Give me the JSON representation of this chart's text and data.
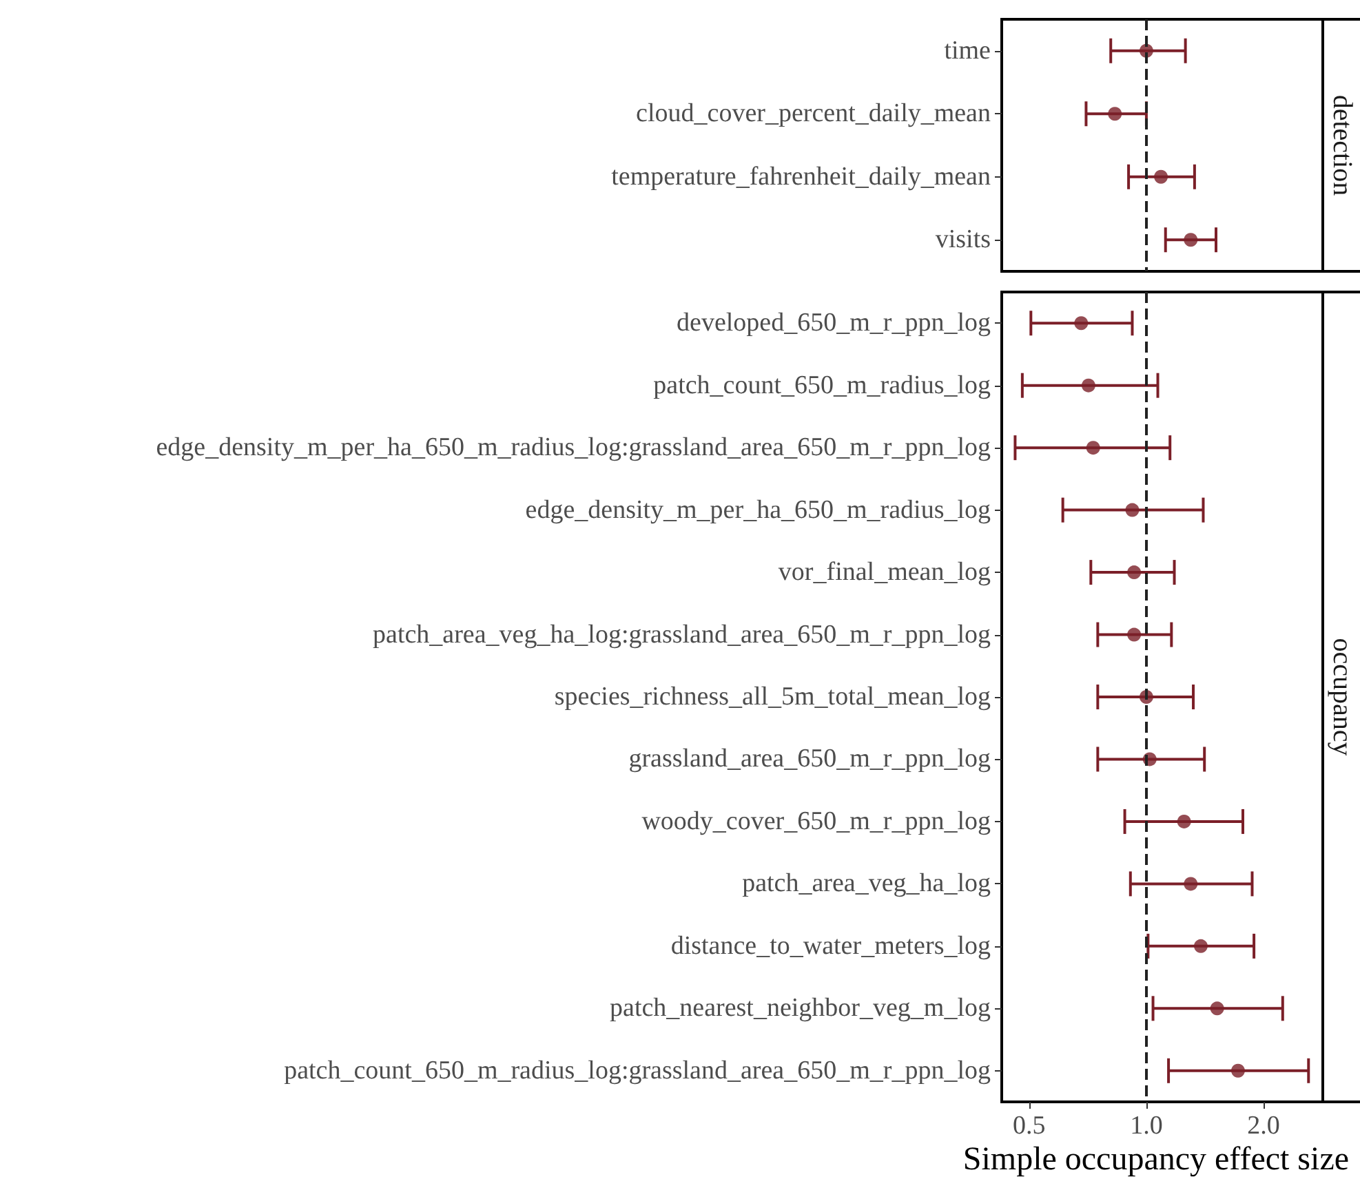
{
  "chart_data": [
    {
      "type": "scatter",
      "title": "detection",
      "orientation": "horizontal",
      "log": "x",
      "marker": "circle",
      "grid": false,
      "tick_labels": "y",
      "categories": [
        "time",
        "cloud_cover_percent_daily_mean",
        "temperature_fahrenheit_daily_mean",
        "visits"
      ],
      "series": [
        {
          "color": "#7b1f28",
          "values": [
            1.0,
            0.83,
            1.09,
            1.3
          ],
          "errors": [
            [
              0.81,
              1.26
            ],
            [
              0.7,
              1.0
            ],
            [
              0.9,
              1.33
            ],
            [
              1.12,
              1.51
            ]
          ]
        }
      ],
      "xlim": [
        0.425,
        2.84
      ],
      "ref_lines": [
        {
          "axis": "x",
          "value": 1,
          "line_style": "dashed",
          "color": "#222222"
        }
      ]
    },
    {
      "type": "scatter",
      "title": "occupancy",
      "orientation": "horizontal",
      "log": "x",
      "marker": "circle",
      "grid": false,
      "xlabel": "Simple occupancy effect size",
      "categories": [
        "developed_650_m_r_ppn_log",
        "patch_count_650_m_radius_log",
        "edge_density_m_per_ha_650_m_radius_log:grassland_area_650_m_r_ppn_log",
        "edge_density_m_per_ha_650_m_radius_log",
        "vor_final_mean_log",
        "patch_area_veg_ha_log:grassland_area_650_m_r_ppn_log",
        "species_richness_all_5m_total_mean_log",
        "grassland_area_650_m_r_ppn_log",
        "woody_cover_650_m_r_ppn_log",
        "patch_area_veg_ha_log",
        "distance_to_water_meters_log",
        "patch_nearest_neighbor_veg_m_log",
        "patch_count_650_m_radius_log:grassland_area_650_m_r_ppn_log"
      ],
      "series": [
        {
          "color": "#7b1f28",
          "values": [
            0.68,
            0.71,
            0.73,
            0.92,
            0.93,
            0.93,
            1.0,
            1.02,
            1.25,
            1.3,
            1.38,
            1.52,
            1.72
          ],
          "errors": [
            [
              0.505,
              0.92
            ],
            [
              0.48,
              1.07
            ],
            [
              0.46,
              1.15
            ],
            [
              0.61,
              1.4
            ],
            [
              0.72,
              1.18
            ],
            [
              0.75,
              1.16
            ],
            [
              0.75,
              1.32
            ],
            [
              0.75,
              1.41
            ],
            [
              0.88,
              1.77
            ],
            [
              0.91,
              1.87
            ],
            [
              1.01,
              1.89
            ],
            [
              1.04,
              2.24
            ],
            [
              1.14,
              2.61
            ]
          ]
        }
      ],
      "xlim": [
        0.425,
        2.84
      ],
      "xticks": [
        {
          "value": 0.5,
          "label": "0.5"
        },
        {
          "value": 1,
          "label": "1.0"
        },
        {
          "value": 2,
          "label": "2.0"
        }
      ],
      "ref_lines": [
        {
          "axis": "x",
          "value": 1,
          "line_style": "dashed",
          "color": "#222222"
        }
      ]
    }
  ]
}
